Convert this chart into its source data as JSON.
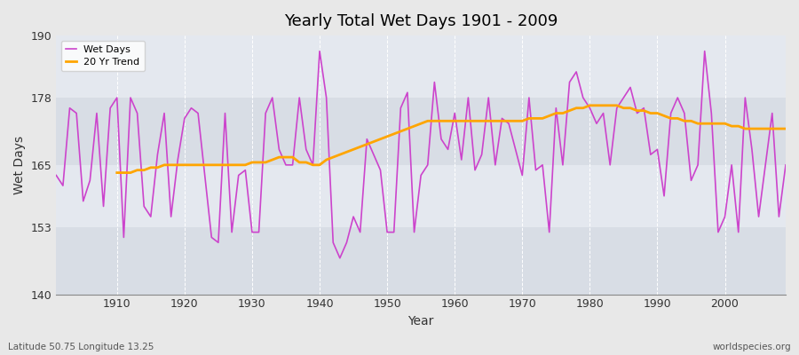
{
  "title": "Yearly Total Wet Days 1901 - 2009",
  "xlabel": "Year",
  "ylabel": "Wet Days",
  "xlim": [
    1901,
    2009
  ],
  "ylim": [
    140,
    190
  ],
  "yticks": [
    140,
    153,
    165,
    178,
    190
  ],
  "bg_color": "#e8e8e8",
  "plot_bg_light": "#dde3ea",
  "plot_bg_dark": "#cdd3da",
  "wet_days_color": "#cc44cc",
  "trend_color": "#FFA500",
  "legend_labels": [
    "Wet Days",
    "20 Yr Trend"
  ],
  "footer_left": "Latitude 50.75 Longitude 13.25",
  "footer_right": "worldspecies.org",
  "wet_days": [
    163,
    161,
    176,
    175,
    158,
    162,
    175,
    157,
    176,
    178,
    151,
    178,
    175,
    157,
    155,
    167,
    175,
    155,
    166,
    174,
    176,
    175,
    163,
    151,
    150,
    175,
    152,
    163,
    164,
    152,
    152,
    175,
    178,
    168,
    165,
    165,
    178,
    168,
    165,
    187,
    178,
    150,
    147,
    150,
    155,
    152,
    170,
    167,
    164,
    152,
    152,
    176,
    179,
    152,
    163,
    165,
    181,
    170,
    168,
    175,
    166,
    178,
    164,
    167,
    178,
    165,
    174,
    173,
    168,
    163,
    178,
    164,
    165,
    152,
    176,
    165,
    181,
    183,
    178,
    176,
    173,
    175,
    165,
    176,
    178,
    180,
    175,
    176,
    167,
    168,
    159,
    175,
    178,
    175,
    162,
    165,
    187,
    175,
    152,
    155,
    165,
    152,
    178,
    168,
    155,
    165,
    175,
    155,
    165
  ],
  "trend": [
    null,
    null,
    null,
    null,
    null,
    null,
    null,
    null,
    null,
    163.5,
    163.5,
    163.5,
    164.0,
    164.0,
    164.5,
    164.5,
    165.0,
    165.0,
    165.0,
    165.0,
    165.0,
    165.0,
    165.0,
    165.0,
    165.0,
    165.0,
    165.0,
    165.0,
    165.0,
    165.5,
    165.5,
    165.5,
    166.0,
    166.5,
    166.5,
    166.5,
    165.5,
    165.5,
    165.0,
    165.0,
    166.0,
    166.5,
    167.0,
    167.5,
    168.0,
    168.5,
    169.0,
    169.5,
    170.0,
    170.5,
    171.0,
    171.5,
    172.0,
    172.5,
    173.0,
    173.5,
    173.5,
    173.5,
    173.5,
    173.5,
    173.5,
    173.5,
    173.5,
    173.5,
    173.5,
    173.5,
    173.5,
    173.5,
    173.5,
    173.5,
    174.0,
    174.0,
    174.0,
    174.5,
    175.0,
    175.0,
    175.5,
    176.0,
    176.0,
    176.5,
    176.5,
    176.5,
    176.5,
    176.5,
    176.0,
    176.0,
    175.5,
    175.5,
    175.0,
    175.0,
    174.5,
    174.0,
    174.0,
    173.5,
    173.5,
    173.0,
    173.0,
    173.0,
    173.0,
    173.0,
    172.5,
    172.5,
    172.0,
    172.0,
    172.0,
    172.0,
    172.0,
    172.0,
    172.0
  ]
}
